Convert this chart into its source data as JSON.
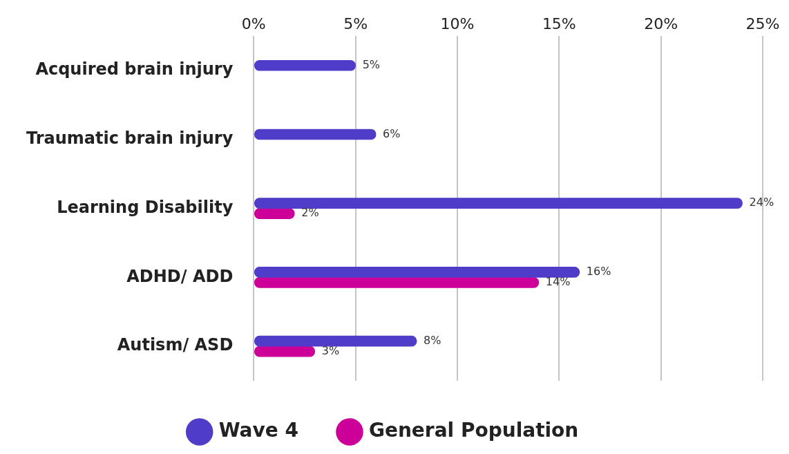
{
  "chart_data": {
    "type": "bar",
    "orientation": "horizontal",
    "categories": [
      "Acquired brain injury",
      "Traumatic brain injury",
      "Learning Disability",
      "ADHD/ ADD",
      "Autism/ ASD"
    ],
    "series": [
      {
        "name": "Wave 4",
        "color": "#4f3cc9",
        "values": [
          5,
          6,
          24,
          16,
          8
        ],
        "value_labels": [
          "5%",
          "6%",
          "24%",
          "16%",
          "8%"
        ]
      },
      {
        "name": "General Population",
        "color": "#cc0099",
        "values": [
          null,
          null,
          2,
          14,
          3
        ],
        "value_labels": [
          null,
          null,
          "2%",
          "14%",
          "3%"
        ]
      }
    ],
    "xlim": [
      0,
      25
    ],
    "xticks": [
      {
        "value": 0,
        "label": "0%"
      },
      {
        "value": 5,
        "label": "5%"
      },
      {
        "value": 10,
        "label": "10%"
      },
      {
        "value": 15,
        "label": "15%"
      },
      {
        "value": 20,
        "label": "20%"
      },
      {
        "value": 25,
        "label": "25%"
      }
    ],
    "grid": "x",
    "legend": "bottom"
  }
}
